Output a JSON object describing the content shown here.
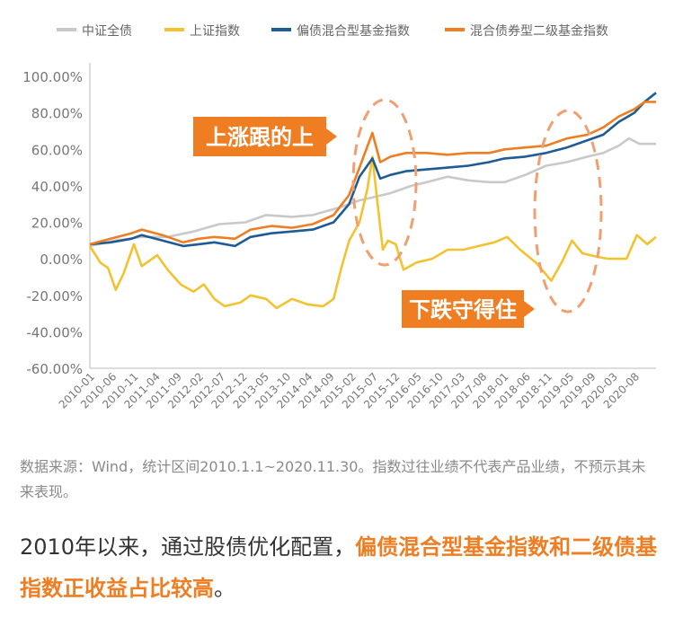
{
  "chart_data": {
    "type": "line",
    "title": "",
    "xlabel": "",
    "ylabel": "",
    "ylim": [
      -0.6,
      1.0
    ],
    "y_ticks": [
      "100.00%",
      "80.00%",
      "60.00%",
      "40.00%",
      "20.00%",
      "0.00%",
      "-20.00%",
      "-40.00%",
      "-60.00%"
    ],
    "x_ticks": [
      "2010-01",
      "2010-06",
      "2010-11",
      "2011-04",
      "2011-09",
      "2012-02",
      "2012-07",
      "2012-12",
      "2013-05",
      "2013-10",
      "2014-04",
      "2014-09",
      "2015-02",
      "2015-07",
      "2015-12",
      "2016-05",
      "2016-10",
      "2017-03",
      "2017-08",
      "2018-01",
      "2018-06",
      "2018-11",
      "2019-05",
      "2019-09",
      "2020-03",
      "2020-08"
    ],
    "legend_position": "top",
    "series": [
      {
        "name": "中证全债",
        "color": "#c9c9c9",
        "values": [
          [
            2010.0,
            0.07
          ],
          [
            2010.5,
            0.1
          ],
          [
            2011.0,
            0.12
          ],
          [
            2011.5,
            0.12
          ],
          [
            2012.0,
            0.15
          ],
          [
            2012.5,
            0.19
          ],
          [
            2013.0,
            0.2
          ],
          [
            2013.4,
            0.24
          ],
          [
            2013.9,
            0.23
          ],
          [
            2014.3,
            0.24
          ],
          [
            2014.8,
            0.28
          ],
          [
            2015.2,
            0.32
          ],
          [
            2015.5,
            0.34
          ],
          [
            2015.8,
            0.36
          ],
          [
            2016.2,
            0.4
          ],
          [
            2016.5,
            0.42
          ],
          [
            2016.9,
            0.45
          ],
          [
            2017.3,
            0.43
          ],
          [
            2017.7,
            0.42
          ],
          [
            2018.0,
            0.42
          ],
          [
            2018.4,
            0.46
          ],
          [
            2018.8,
            0.51
          ],
          [
            2019.2,
            0.53
          ],
          [
            2019.6,
            0.56
          ],
          [
            2019.9,
            0.58
          ],
          [
            2020.2,
            0.62
          ],
          [
            2020.4,
            0.66
          ],
          [
            2020.6,
            0.63
          ],
          [
            2020.92,
            0.63
          ]
        ]
      },
      {
        "name": "上证指数",
        "color": "#f2c230",
        "values": [
          [
            2010.0,
            0.07
          ],
          [
            2010.2,
            -0.02
          ],
          [
            2010.35,
            -0.05
          ],
          [
            2010.5,
            -0.17
          ],
          [
            2010.65,
            -0.08
          ],
          [
            2010.85,
            0.08
          ],
          [
            2011.0,
            -0.04
          ],
          [
            2011.3,
            0.02
          ],
          [
            2011.5,
            -0.06
          ],
          [
            2011.75,
            -0.14
          ],
          [
            2012.0,
            -0.18
          ],
          [
            2012.2,
            -0.14
          ],
          [
            2012.4,
            -0.22
          ],
          [
            2012.6,
            -0.26
          ],
          [
            2012.9,
            -0.24
          ],
          [
            2013.1,
            -0.2
          ],
          [
            2013.4,
            -0.22
          ],
          [
            2013.6,
            -0.27
          ],
          [
            2013.9,
            -0.22
          ],
          [
            2014.2,
            -0.25
          ],
          [
            2014.5,
            -0.26
          ],
          [
            2014.7,
            -0.22
          ],
          [
            2014.85,
            -0.05
          ],
          [
            2015.0,
            0.1
          ],
          [
            2015.2,
            0.2
          ],
          [
            2015.35,
            0.38
          ],
          [
            2015.45,
            0.56
          ],
          [
            2015.55,
            0.3
          ],
          [
            2015.65,
            0.05
          ],
          [
            2015.75,
            0.1
          ],
          [
            2015.9,
            0.08
          ],
          [
            2016.05,
            -0.06
          ],
          [
            2016.3,
            -0.02
          ],
          [
            2016.6,
            0.0
          ],
          [
            2016.9,
            0.05
          ],
          [
            2017.2,
            0.05
          ],
          [
            2017.5,
            0.07
          ],
          [
            2017.8,
            0.09
          ],
          [
            2018.05,
            0.12
          ],
          [
            2018.3,
            0.05
          ],
          [
            2018.6,
            -0.02
          ],
          [
            2018.9,
            -0.12
          ],
          [
            2019.1,
            -0.02
          ],
          [
            2019.3,
            0.1
          ],
          [
            2019.5,
            0.03
          ],
          [
            2019.8,
            0.01
          ],
          [
            2020.0,
            0.0
          ],
          [
            2020.2,
            0.0
          ],
          [
            2020.35,
            0.0
          ],
          [
            2020.55,
            0.13
          ],
          [
            2020.75,
            0.08
          ],
          [
            2020.92,
            0.12
          ]
        ]
      },
      {
        "name": "偏债混合型基金指数",
        "color": "#1f5b94",
        "values": [
          [
            2010.0,
            0.08
          ],
          [
            2010.4,
            0.09
          ],
          [
            2010.8,
            0.11
          ],
          [
            2011.0,
            0.13
          ],
          [
            2011.4,
            0.1
          ],
          [
            2011.8,
            0.07
          ],
          [
            2012.1,
            0.08
          ],
          [
            2012.4,
            0.09
          ],
          [
            2012.8,
            0.07
          ],
          [
            2013.1,
            0.12
          ],
          [
            2013.5,
            0.14
          ],
          [
            2013.9,
            0.15
          ],
          [
            2014.3,
            0.16
          ],
          [
            2014.7,
            0.2
          ],
          [
            2015.0,
            0.3
          ],
          [
            2015.2,
            0.45
          ],
          [
            2015.45,
            0.55
          ],
          [
            2015.6,
            0.44
          ],
          [
            2015.8,
            0.46
          ],
          [
            2016.1,
            0.48
          ],
          [
            2016.5,
            0.49
          ],
          [
            2016.9,
            0.5
          ],
          [
            2017.3,
            0.51
          ],
          [
            2017.7,
            0.53
          ],
          [
            2018.0,
            0.55
          ],
          [
            2018.4,
            0.56
          ],
          [
            2018.8,
            0.58
          ],
          [
            2019.2,
            0.61
          ],
          [
            2019.6,
            0.65
          ],
          [
            2019.9,
            0.68
          ],
          [
            2020.2,
            0.75
          ],
          [
            2020.5,
            0.8
          ],
          [
            2020.7,
            0.86
          ],
          [
            2020.92,
            0.91
          ]
        ]
      },
      {
        "name": "混合债券型二级基金指数",
        "color": "#ef7d22",
        "values": [
          [
            2010.0,
            0.08
          ],
          [
            2010.4,
            0.11
          ],
          [
            2010.8,
            0.14
          ],
          [
            2011.0,
            0.16
          ],
          [
            2011.4,
            0.13
          ],
          [
            2011.8,
            0.09
          ],
          [
            2012.1,
            0.11
          ],
          [
            2012.4,
            0.12
          ],
          [
            2012.8,
            0.11
          ],
          [
            2013.1,
            0.16
          ],
          [
            2013.5,
            0.18
          ],
          [
            2013.9,
            0.17
          ],
          [
            2014.3,
            0.19
          ],
          [
            2014.7,
            0.24
          ],
          [
            2015.0,
            0.35
          ],
          [
            2015.2,
            0.5
          ],
          [
            2015.45,
            0.69
          ],
          [
            2015.6,
            0.53
          ],
          [
            2015.8,
            0.56
          ],
          [
            2016.1,
            0.58
          ],
          [
            2016.5,
            0.58
          ],
          [
            2016.9,
            0.57
          ],
          [
            2017.3,
            0.58
          ],
          [
            2017.7,
            0.58
          ],
          [
            2018.0,
            0.6
          ],
          [
            2018.4,
            0.61
          ],
          [
            2018.8,
            0.62
          ],
          [
            2019.2,
            0.66
          ],
          [
            2019.6,
            0.68
          ],
          [
            2019.9,
            0.72
          ],
          [
            2020.2,
            0.78
          ],
          [
            2020.5,
            0.82
          ],
          [
            2020.7,
            0.86
          ],
          [
            2020.92,
            0.86
          ]
        ]
      }
    ],
    "annotations": [
      {
        "text": "上涨跟的上",
        "color": "#ef7d22"
      },
      {
        "text": "下跌守得住",
        "color": "#ef7d22"
      }
    ]
  },
  "footer": {
    "source": "数据来源：Wind，统计区间2010.1.1~2020.11.30。指数过往业绩不代表产品业绩，不预示其未来表现。",
    "headline_plain": "2010年以来，通过股债优化配置，",
    "headline_highlight": "偏债混合型基金指数和二级债基指数正收益占比较高",
    "headline_end": "。"
  }
}
